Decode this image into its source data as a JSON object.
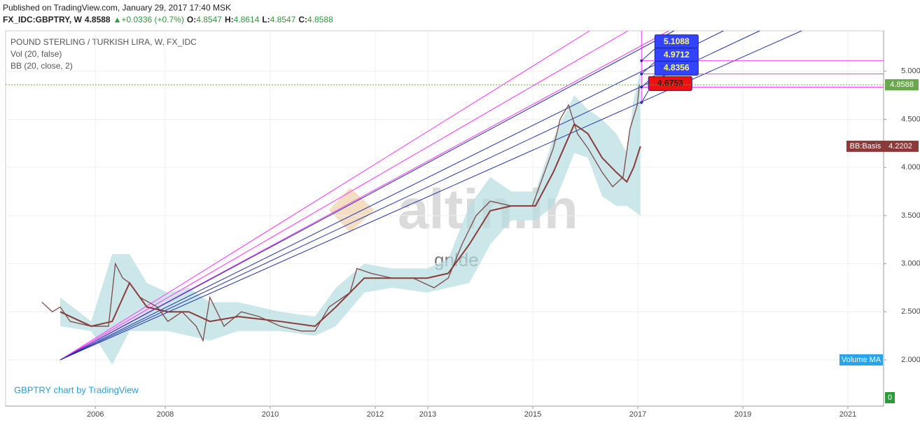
{
  "header": {
    "published": "Published on TradingView.com, January 29, 2017 17:40 MSK",
    "symbol": "FX_IDC:GBPTRY, W",
    "last": "4.8588",
    "change": "▲+0.0336 (+0.7%)",
    "ohlc": [
      {
        "label": "O:",
        "value": "4.8547"
      },
      {
        "label": "H:",
        "value": "4.8614"
      },
      {
        "label": "L:",
        "value": "4.8547"
      },
      {
        "label": "C:",
        "value": "4.8588"
      }
    ]
  },
  "chart_data": {
    "type": "line",
    "title": "POUND STERLING / TURKISH LIRA, W, FX_IDC",
    "indicators": [
      "Vol (20, false)",
      "BB (20, close, 2)"
    ],
    "footer": "GBPTRY chart by TradingView",
    "watermark": [
      "altin.in",
      "gnlde"
    ],
    "xlim": [
      2004.96,
      2021.68
    ],
    "ylim": [
      1.52,
      5.42
    ],
    "grid": true,
    "xticks": [
      {
        "value": 2006.67,
        "label": "2006"
      },
      2008,
      2010,
      2012,
      2013,
      2015,
      2017,
      2019,
      2021
    ],
    "yticks": [
      {
        "value": 2,
        "label": "2.0000"
      },
      {
        "value": 2.5,
        "label": "2.5000"
      },
      {
        "value": 3,
        "label": "3.0000"
      },
      {
        "value": 3.5,
        "label": "3.5000"
      },
      {
        "value": 4,
        "label": "4.0000"
      },
      {
        "value": 4.5,
        "label": "4.5000"
      },
      {
        "value": 5,
        "label": "5.0000"
      }
    ],
    "price": {
      "color": "#7a4a4a",
      "x": [
        2005.65,
        2005.85,
        2006.0,
        2006.19,
        2006.59,
        2006.92,
        2007.05,
        2007.19,
        2007.32,
        2007.52,
        2007.85,
        2008.05,
        2008.32,
        2008.59,
        2008.72,
        2008.85,
        2009.12,
        2009.45,
        2009.79,
        2010.19,
        2010.59,
        2010.85,
        2011.12,
        2011.52,
        2011.65,
        2011.92,
        2012.32,
        2012.72,
        2013.12,
        2013.39,
        2013.65,
        2013.92,
        2014.19,
        2014.59,
        2014.99,
        2015.19,
        2015.39,
        2015.52,
        2015.68,
        2015.85,
        2016.05,
        2016.32,
        2016.52,
        2016.72,
        2016.85,
        2016.99,
        2017.03
      ],
      "values": [
        2.6,
        2.5,
        2.55,
        2.4,
        2.35,
        2.35,
        3.0,
        2.85,
        2.8,
        2.65,
        2.55,
        2.4,
        2.5,
        2.35,
        2.2,
        2.65,
        2.35,
        2.5,
        2.45,
        2.35,
        2.3,
        2.3,
        2.55,
        2.7,
        2.95,
        2.9,
        2.85,
        2.85,
        2.75,
        2.85,
        3.2,
        3.5,
        3.65,
        3.6,
        3.6,
        3.9,
        4.2,
        4.5,
        4.65,
        4.35,
        4.2,
        3.95,
        3.8,
        3.9,
        4.4,
        4.65,
        4.86
      ]
    },
    "bb": {
      "basis_color": "#8b3a3a",
      "band_color": "#b5dde0",
      "x": [
        2006.0,
        2006.59,
        2006.99,
        2007.32,
        2007.65,
        2008.05,
        2008.45,
        2008.85,
        2009.39,
        2010.19,
        2010.85,
        2011.25,
        2011.79,
        2012.32,
        2012.99,
        2013.39,
        2013.79,
        2014.19,
        2014.59,
        2015.05,
        2015.39,
        2015.79,
        2016.05,
        2016.32,
        2016.59,
        2016.79,
        2016.92,
        2017.05
      ],
      "basis": [
        2.5,
        2.35,
        2.4,
        2.8,
        2.55,
        2.5,
        2.5,
        2.4,
        2.45,
        2.4,
        2.35,
        2.55,
        2.85,
        2.85,
        2.85,
        2.9,
        3.2,
        3.55,
        3.6,
        3.6,
        3.95,
        4.45,
        4.35,
        4.1,
        3.95,
        3.85,
        4.0,
        4.22
      ],
      "upper": [
        2.65,
        2.4,
        3.1,
        3.1,
        2.8,
        2.7,
        2.75,
        2.6,
        2.6,
        2.5,
        2.45,
        2.75,
        3.0,
        2.95,
        2.95,
        3.05,
        3.6,
        3.9,
        3.75,
        3.75,
        4.3,
        4.75,
        4.6,
        4.5,
        4.35,
        4.15,
        4.7,
        5.0
      ],
      "lower": [
        2.35,
        2.3,
        1.95,
        2.3,
        2.3,
        2.3,
        2.25,
        2.2,
        2.3,
        2.3,
        2.25,
        2.35,
        2.7,
        2.75,
        2.7,
        2.75,
        2.8,
        3.2,
        3.45,
        3.45,
        3.6,
        4.15,
        4.1,
        3.7,
        3.6,
        3.6,
        3.55,
        3.5
      ],
      "label": "BB:Basis",
      "last": 4.2202,
      "last_label": "4.2202"
    },
    "last_price": 4.8588,
    "last_price_label": "4.8588",
    "last_price_color": "#6aa84f",
    "fan": {
      "origin": [
        2006.0,
        2.0
      ],
      "lines": [
        {
          "color": "#ff33ff",
          "end": [
            2016.08,
            5.42
          ]
        },
        {
          "color": "#ff33ff",
          "end": [
            2016.81,
            5.42
          ]
        },
        {
          "color": "#ff33ff",
          "end": [
            2017.59,
            5.42
          ]
        },
        {
          "color": "#2233aa",
          "end": [
            2017.69,
            5.42
          ]
        },
        {
          "color": "#2233aa",
          "end": [
            2018.63,
            5.42
          ]
        },
        {
          "color": "#2233aa",
          "end": [
            2019.32,
            5.42
          ]
        },
        {
          "color": "#2233aa",
          "end": [
            2020.12,
            5.42
          ]
        }
      ]
    },
    "levels": {
      "x": 2017.07,
      "line_color": "#ff33ff",
      "values": [
        5.1088,
        4.9712,
        4.8356,
        4.6753
      ],
      "colors": [
        "#3344ff",
        "#3344ff",
        "#3344ff",
        "#ee1111"
      ]
    },
    "volume_ma": {
      "label": "Volume MA",
      "value": 0,
      "color": "#2aa4e8",
      "zero_color": "#2e9a3e"
    }
  }
}
